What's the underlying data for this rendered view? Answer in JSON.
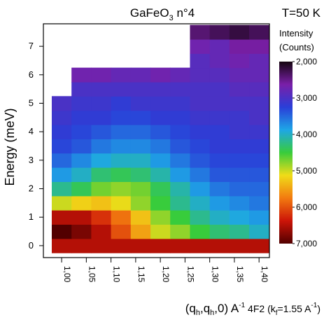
{
  "chart_data": {
    "type": "heatmap",
    "title": [
      "GaFeO",
      "3",
      " n°4"
    ],
    "annotation": "T=50 K",
    "ylabel": "Energy (meV)",
    "xlabel": [
      "(q",
      "h",
      ",q",
      "h",
      ",0) A",
      "-1",
      " 4F2 (k",
      "f",
      "=1.55 A",
      "-1",
      ")"
    ],
    "colorbar_label": [
      "Intensity",
      "(Counts)"
    ],
    "x": [
      1.0,
      1.04,
      1.08,
      1.12,
      1.16,
      1.2,
      1.24,
      1.28,
      1.32,
      1.36,
      1.4
    ],
    "y": [
      0,
      0.5,
      1,
      1.5,
      2,
      2.5,
      3,
      3.5,
      4,
      4.5,
      5,
      5.5,
      6,
      6.5,
      7,
      7.5
    ],
    "z": [
      [
        6500,
        6500,
        6500,
        6500,
        6500,
        6500,
        6500,
        6500,
        6500,
        6500,
        6500
      ],
      [
        7000,
        6800,
        6500,
        6000,
        5500,
        5000,
        4800,
        4500,
        4300,
        4200,
        4000
      ],
      [
        6500,
        6500,
        6200,
        5800,
        5300,
        4800,
        4500,
        4200,
        4000,
        3900,
        3800
      ],
      [
        5000,
        5200,
        5300,
        5100,
        4800,
        4500,
        4200,
        4000,
        3800,
        3700,
        3600
      ],
      [
        4200,
        4400,
        4700,
        4800,
        4700,
        4400,
        4100,
        3800,
        3600,
        3500,
        3500
      ],
      [
        3800,
        4000,
        4300,
        4400,
        4300,
        4100,
        3800,
        3600,
        3400,
        3400,
        3400
      ],
      [
        3500,
        3700,
        3900,
        4000,
        4000,
        3800,
        3600,
        3400,
        3300,
        3300,
        3300
      ],
      [
        3300,
        3400,
        3600,
        3700,
        3700,
        3600,
        3400,
        3300,
        3200,
        3200,
        3200
      ],
      [
        3200,
        3300,
        3400,
        3500,
        3500,
        3400,
        3300,
        3200,
        3200,
        3100,
        3100
      ],
      [
        3100,
        3200,
        3200,
        3300,
        3300,
        3200,
        3200,
        3100,
        3100,
        3100,
        3000
      ],
      [
        3000,
        3100,
        3100,
        3200,
        3100,
        3100,
        3100,
        3000,
        3000,
        3000,
        3000
      ],
      [
        null,
        3000,
        3000,
        3000,
        3000,
        3000,
        3000,
        3000,
        3000,
        2900,
        2900
      ],
      [
        null,
        2700,
        2700,
        2800,
        2800,
        2700,
        2800,
        2900,
        2900,
        2800,
        2800
      ],
      [
        null,
        null,
        null,
        null,
        null,
        null,
        null,
        2900,
        2800,
        2700,
        2800
      ],
      [
        null,
        null,
        null,
        null,
        null,
        null,
        null,
        2700,
        2800,
        2600,
        2600
      ],
      [
        null,
        null,
        null,
        null,
        null,
        null,
        null,
        2400,
        2300,
        2200,
        2300
      ]
    ],
    "xlim": [
      0.963,
      1.421
    ],
    "ylim": [
      -0.42,
      7.79
    ],
    "xticks": [
      {
        "value": 1.0,
        "label": "1,00"
      },
      {
        "value": 1.05,
        "label": "1,05"
      },
      {
        "value": 1.1,
        "label": "1,10"
      },
      {
        "value": 1.15,
        "label": "1,15"
      },
      {
        "value": 1.2,
        "label": "1,20"
      },
      {
        "value": 1.25,
        "label": "1,25"
      },
      {
        "value": 1.3,
        "label": "1,30"
      },
      {
        "value": 1.35,
        "label": "1,35"
      },
      {
        "value": 1.4,
        "label": "1,40"
      }
    ],
    "yticks": [
      0,
      1,
      2,
      3,
      4,
      5,
      6,
      7
    ],
    "zlim": [
      2000,
      7000
    ],
    "zticks": [
      {
        "value": 2000,
        "label": "2,000"
      },
      {
        "value": 3000,
        "label": "3,000"
      },
      {
        "value": 4000,
        "label": "4,000"
      },
      {
        "value": 5000,
        "label": "5,000"
      },
      {
        "value": 6000,
        "label": "6,000"
      },
      {
        "value": 7000,
        "label": "7,000"
      }
    ],
    "colorscale": [
      "#150510",
      "#7a1fa8",
      "#2a3ed8",
      "#1ea6e6",
      "#38cc3c",
      "#f0dc18",
      "#f27a10",
      "#cc1408",
      "#520000"
    ]
  }
}
